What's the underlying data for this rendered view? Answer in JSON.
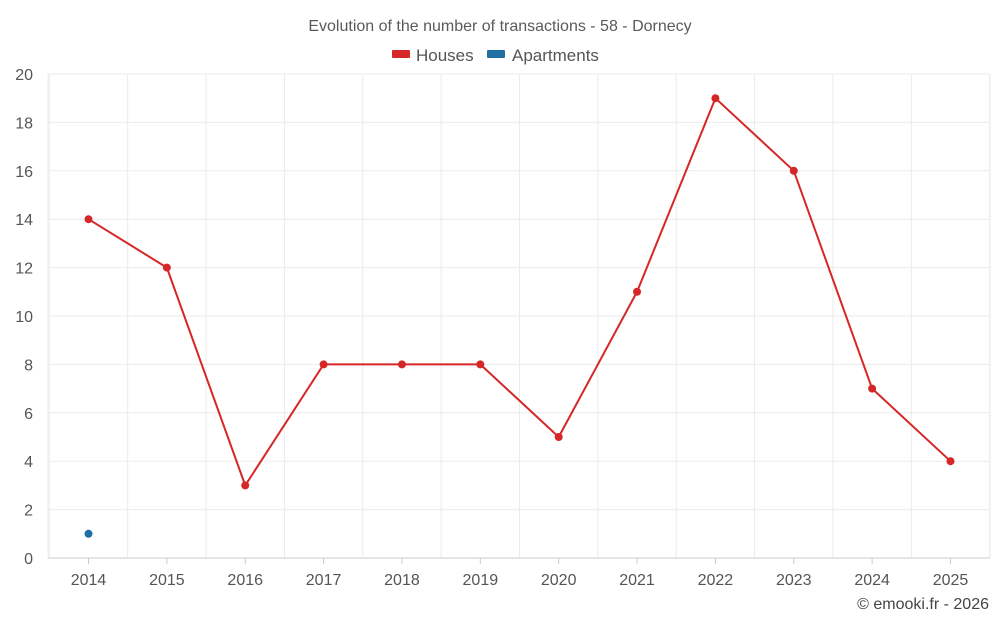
{
  "chart_data": {
    "type": "line",
    "title": "Evolution of the number of transactions - 58 - Dornecy",
    "categories": [
      "2014",
      "2015",
      "2016",
      "2017",
      "2018",
      "2019",
      "2020",
      "2021",
      "2022",
      "2023",
      "2024",
      "2025"
    ],
    "ylim": [
      0,
      20
    ],
    "yticks": [
      0,
      2,
      4,
      6,
      8,
      10,
      12,
      14,
      16,
      18,
      20
    ],
    "grid": true,
    "legend_position": "top-center",
    "series": [
      {
        "name": "Houses",
        "color": "#d62728",
        "values": [
          14,
          12,
          3,
          8,
          8,
          8,
          5,
          11,
          19,
          16,
          7,
          4
        ]
      },
      {
        "name": "Apartments",
        "color": "#1f6fa5",
        "values": [
          1,
          null,
          null,
          null,
          null,
          null,
          null,
          null,
          null,
          null,
          null,
          null
        ]
      }
    ]
  },
  "credit": "© emooki.fr - 2026"
}
